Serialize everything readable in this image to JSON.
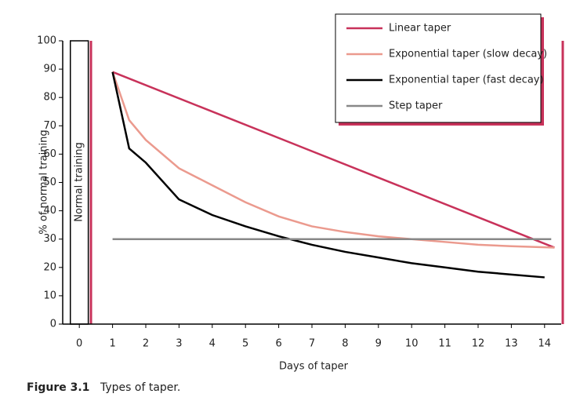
{
  "chart_data": {
    "type": "line",
    "x_label": "Days of taper",
    "y_label": "% of normal training",
    "caption": {
      "number": "Figure 3.1",
      "text": "Types of taper."
    },
    "annotation": {
      "label": "Normal training",
      "x": 0,
      "value": 100
    },
    "xlim": [
      -0.5,
      14.5
    ],
    "ylim": [
      0,
      100
    ],
    "xticks": [
      0,
      1,
      2,
      3,
      4,
      5,
      6,
      7,
      8,
      9,
      10,
      11,
      12,
      13,
      14
    ],
    "yticks": [
      0,
      10,
      20,
      30,
      40,
      50,
      60,
      70,
      80,
      90,
      100
    ],
    "series": [
      {
        "name": "Linear taper",
        "color": "#c8325a",
        "x": [
          1,
          14.3
        ],
        "values": [
          89,
          27
        ]
      },
      {
        "name": "Exponential taper (slow decay)",
        "color": "#eb9a8e",
        "x": [
          1,
          1.5,
          2,
          3,
          4,
          5,
          6,
          7,
          8,
          9,
          10,
          11,
          12,
          13,
          14.3
        ],
        "values": [
          89,
          72,
          65,
          55,
          49,
          43,
          38,
          34.5,
          32.5,
          31,
          30,
          29,
          28,
          27.5,
          27
        ]
      },
      {
        "name": "Exponential taper (fast decay)",
        "color": "#000000",
        "x": [
          1,
          1.5,
          2,
          3,
          4,
          5,
          6,
          7,
          8,
          9,
          10,
          11,
          12,
          13,
          14
        ],
        "values": [
          89,
          62,
          57,
          44,
          38.5,
          34.5,
          31,
          28,
          25.5,
          23.5,
          21.5,
          20,
          18.5,
          17.5,
          16.5
        ]
      },
      {
        "name": "Step taper",
        "color": "#888888",
        "x": [
          1,
          14.2
        ],
        "values": [
          30,
          30
        ]
      }
    ]
  }
}
